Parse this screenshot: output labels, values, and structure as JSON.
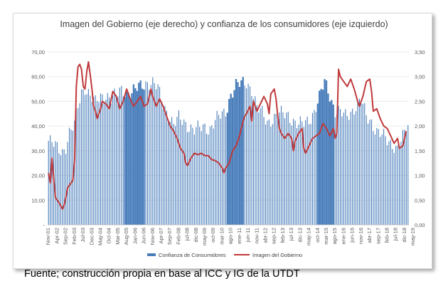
{
  "chart_data": {
    "type": "bar+line",
    "title": "Imagen del Gobierno (eje derecho)  y confianza de los consumidores (eje izquierdo)",
    "y_left": {
      "min": 0,
      "max": 70,
      "step": 10,
      "tick_labels": [
        "-",
        "10,00",
        "20,00",
        "30,00",
        "40,00",
        "50,00",
        "60,00",
        "70,00"
      ]
    },
    "y_right": {
      "min": 0,
      "max": 3.5,
      "step": 0.5,
      "tick_labels": [
        "0,00",
        "0,50",
        "1,00",
        "1,50",
        "2,00",
        "2,50",
        "3,00",
        "3,50"
      ]
    },
    "x_tick_labels": [
      "Nov-01",
      "Apr-02",
      "Sep-02",
      "Feb-03",
      "Jul-03",
      "Dec-03",
      "May-04",
      "Oct-04",
      "Mar-05",
      "Aug-05",
      "Jan-06",
      "Jun-06",
      "Nov-06",
      "Apr-07",
      "Sep-07",
      "Feb-08",
      "jul-08",
      "dic-08",
      "may-09",
      "oct-09",
      "mar-10",
      "ago-10",
      "ene-11",
      "jun-11",
      "nov-11",
      "abr-12",
      "sep-12",
      "feb-13",
      "jul-13",
      "dic-13",
      "may-14",
      "oct-14",
      "mar-15",
      "ago-15",
      "ene-16",
      "jun-16",
      "nov-16",
      "abr-17",
      "sep-17",
      "feb-18",
      "jul-18",
      "dic-18",
      "may-19"
    ],
    "series": [
      {
        "name": "Confianza de Consumidores",
        "type": "bar",
        "axis": "left",
        "color": "#4a7ebb",
        "anchors": [
          [
            0,
            34
          ],
          [
            5,
            31
          ],
          [
            8,
            30
          ],
          [
            10,
            32
          ],
          [
            12,
            37
          ],
          [
            15,
            40
          ],
          [
            17,
            48
          ],
          [
            19,
            54
          ],
          [
            21,
            56
          ],
          [
            24,
            52
          ],
          [
            27,
            49
          ],
          [
            30,
            52
          ],
          [
            33,
            53
          ],
          [
            36,
            51
          ],
          [
            39,
            52
          ],
          [
            42,
            55
          ],
          [
            45,
            54
          ],
          [
            48,
            53
          ],
          [
            51,
            55
          ],
          [
            54,
            57
          ],
          [
            57,
            58
          ],
          [
            60,
            57
          ],
          [
            63,
            55
          ],
          [
            66,
            49
          ],
          [
            69,
            45
          ],
          [
            72,
            40
          ],
          [
            75,
            43
          ],
          [
            78,
            42
          ],
          [
            81,
            40
          ],
          [
            84,
            38
          ],
          [
            87,
            39
          ],
          [
            90,
            40
          ],
          [
            93,
            39
          ],
          [
            96,
            42
          ],
          [
            99,
            44
          ],
          [
            102,
            46
          ],
          [
            105,
            53
          ],
          [
            108,
            56
          ],
          [
            111,
            57
          ],
          [
            114,
            58
          ],
          [
            117,
            55
          ],
          [
            120,
            47
          ],
          [
            123,
            45
          ],
          [
            126,
            42
          ],
          [
            129,
            43
          ],
          [
            132,
            44
          ],
          [
            135,
            45
          ],
          [
            138,
            45
          ],
          [
            141,
            42
          ],
          [
            144,
            40
          ],
          [
            147,
            41
          ],
          [
            150,
            43
          ],
          [
            153,
            46
          ],
          [
            156,
            51
          ],
          [
            159,
            58
          ],
          [
            162,
            53
          ],
          [
            165,
            46
          ],
          [
            168,
            45
          ],
          [
            171,
            44
          ],
          [
            174,
            46
          ],
          [
            177,
            48
          ],
          [
            180,
            50
          ],
          [
            183,
            44
          ],
          [
            186,
            42
          ],
          [
            189,
            38
          ],
          [
            192,
            36
          ],
          [
            195,
            34
          ],
          [
            198,
            33
          ],
          [
            201,
            31
          ],
          [
            204,
            35
          ],
          [
            207,
            40
          ]
        ],
        "dense_ranges": [
          [
            44,
            55
          ],
          [
            103,
            112
          ],
          [
            155,
            164
          ]
        ]
      },
      {
        "name": "Imagen del Gobierno",
        "type": "line",
        "axis": "right",
        "color": "#c0393b",
        "points": [
          [
            0,
            1.05
          ],
          [
            1,
            0.85
          ],
          [
            2,
            1.35
          ],
          [
            3,
            0.95
          ],
          [
            4,
            0.55
          ],
          [
            6,
            0.45
          ],
          [
            8,
            0.32
          ],
          [
            9,
            0.4
          ],
          [
            10,
            0.55
          ],
          [
            11,
            0.75
          ],
          [
            13,
            0.85
          ],
          [
            14,
            0.9
          ],
          [
            15,
            1.3
          ],
          [
            16,
            2.8
          ],
          [
            17,
            3.2
          ],
          [
            18,
            3.25
          ],
          [
            19,
            3.15
          ],
          [
            20,
            2.8
          ],
          [
            21,
            2.75
          ],
          [
            22,
            3.1
          ],
          [
            23,
            3.3
          ],
          [
            24,
            3.05
          ],
          [
            25,
            2.75
          ],
          [
            26,
            2.4
          ],
          [
            27,
            2.3
          ],
          [
            28,
            2.15
          ],
          [
            29,
            2.25
          ],
          [
            30,
            2.35
          ],
          [
            31,
            2.5
          ],
          [
            33,
            2.45
          ],
          [
            35,
            2.35
          ],
          [
            37,
            2.7
          ],
          [
            39,
            2.6
          ],
          [
            41,
            2.35
          ],
          [
            43,
            2.5
          ],
          [
            45,
            2.75
          ],
          [
            47,
            2.55
          ],
          [
            49,
            2.4
          ],
          [
            51,
            2.5
          ],
          [
            53,
            2.6
          ],
          [
            55,
            2.4
          ],
          [
            57,
            2.45
          ],
          [
            59,
            2.75
          ],
          [
            60,
            2.6
          ],
          [
            62,
            2.4
          ],
          [
            64,
            2.55
          ],
          [
            66,
            2.4
          ],
          [
            68,
            2.2
          ],
          [
            70,
            2.0
          ],
          [
            72,
            1.9
          ],
          [
            74,
            1.75
          ],
          [
            76,
            1.55
          ],
          [
            78,
            1.45
          ],
          [
            79,
            1.25
          ],
          [
            80,
            1.2
          ],
          [
            82,
            1.35
          ],
          [
            84,
            1.45
          ],
          [
            86,
            1.42
          ],
          [
            88,
            1.45
          ],
          [
            90,
            1.4
          ],
          [
            92,
            1.4
          ],
          [
            94,
            1.32
          ],
          [
            96,
            1.3
          ],
          [
            98,
            1.25
          ],
          [
            100,
            1.15
          ],
          [
            101,
            1.05
          ],
          [
            102,
            1.15
          ],
          [
            104,
            1.25
          ],
          [
            106,
            1.5
          ],
          [
            108,
            1.6
          ],
          [
            110,
            1.8
          ],
          [
            112,
            2.1
          ],
          [
            113,
            2.2
          ],
          [
            114,
            2.25
          ],
          [
            116,
            2.4
          ],
          [
            117,
            2.1
          ],
          [
            118,
            2.5
          ],
          [
            120,
            2.3
          ],
          [
            122,
            2.45
          ],
          [
            124,
            2.6
          ],
          [
            126,
            2.45
          ],
          [
            127,
            2.25
          ],
          [
            128,
            2.65
          ],
          [
            130,
            2.75
          ],
          [
            131,
            2.55
          ],
          [
            132,
            2.2
          ],
          [
            133,
            1.95
          ],
          [
            134,
            1.85
          ],
          [
            136,
            1.75
          ],
          [
            138,
            1.85
          ],
          [
            140,
            1.75
          ],
          [
            141,
            1.5
          ],
          [
            142,
            1.7
          ],
          [
            144,
            1.85
          ],
          [
            146,
            1.95
          ],
          [
            147,
            1.55
          ],
          [
            148,
            1.45
          ],
          [
            150,
            1.6
          ],
          [
            152,
            1.75
          ],
          [
            154,
            1.8
          ],
          [
            156,
            1.85
          ],
          [
            158,
            2.05
          ],
          [
            160,
            1.95
          ],
          [
            162,
            1.8
          ],
          [
            164,
            1.95
          ],
          [
            165,
            1.75
          ],
          [
            166,
            1.85
          ],
          [
            167,
            3.15
          ],
          [
            168,
            3.0
          ],
          [
            170,
            2.9
          ],
          [
            172,
            2.8
          ],
          [
            174,
            2.95
          ],
          [
            176,
            2.75
          ],
          [
            178,
            2.5
          ],
          [
            179,
            2.4
          ],
          [
            181,
            2.6
          ],
          [
            183,
            2.9
          ],
          [
            185,
            2.95
          ],
          [
            186,
            2.7
          ],
          [
            187,
            2.3
          ],
          [
            189,
            2.35
          ],
          [
            191,
            2.15
          ],
          [
            193,
            2.0
          ],
          [
            195,
            1.95
          ],
          [
            197,
            1.8
          ],
          [
            199,
            1.65
          ],
          [
            201,
            1.75
          ],
          [
            202,
            1.55
          ],
          [
            204,
            1.6
          ],
          [
            205,
            1.75
          ],
          [
            206,
            1.9
          ]
        ]
      }
    ],
    "legend": {
      "position": "bottom",
      "entries": [
        "Confianza de Consumidores",
        "Imagen del Gobierno"
      ]
    }
  },
  "caption": "Fuente; construcción propia en base al ICC y IG de la UTDT"
}
